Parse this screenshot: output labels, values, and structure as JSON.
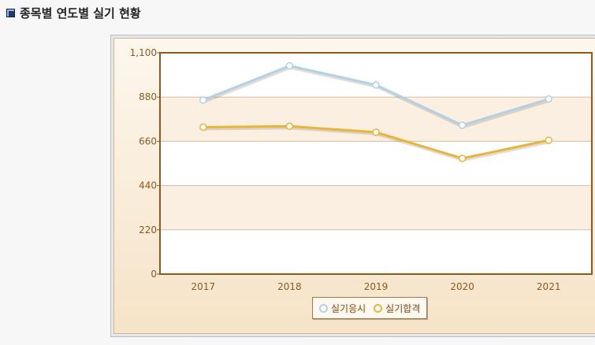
{
  "header": {
    "title": "종목별 연도별 실기 현황"
  },
  "chart_data": {
    "type": "line",
    "x": [
      "2017",
      "2018",
      "2019",
      "2020",
      "2021"
    ],
    "ylim": [
      0,
      1100
    ],
    "yticks": [
      "0",
      "220",
      "440",
      "660",
      "880",
      "1,100"
    ],
    "grid": true,
    "legend_position": "bottom-center",
    "series": [
      {
        "name": "실기응시",
        "values": [
          865,
          1035,
          940,
          740,
          870
        ],
        "color": "#b3d0e6"
      },
      {
        "name": "실기합격",
        "values": [
          730,
          735,
          705,
          575,
          665
        ],
        "color": "#e8b53a"
      }
    ]
  }
}
